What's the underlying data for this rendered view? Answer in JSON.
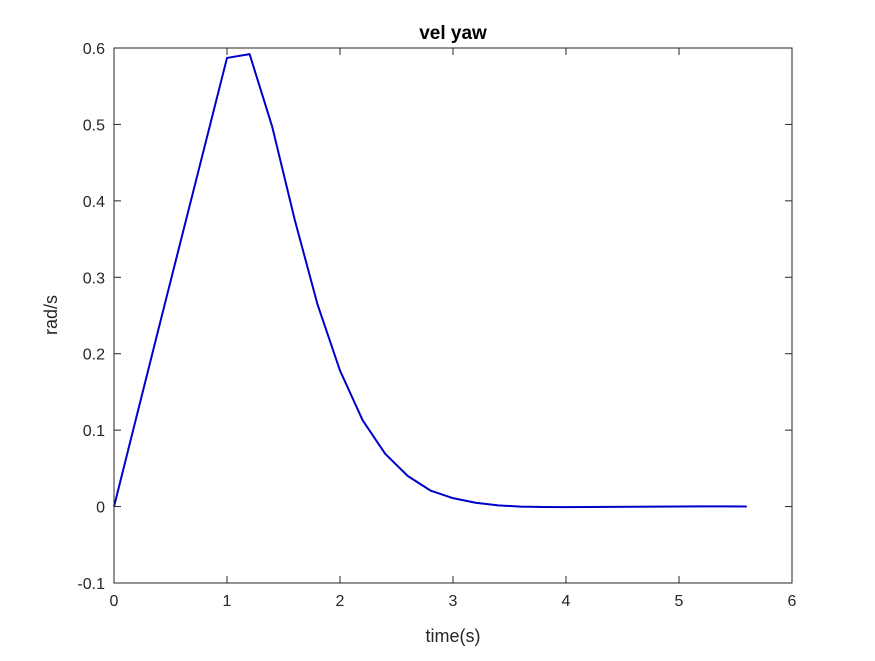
{
  "chart_data": {
    "type": "line",
    "title": "vel yaw",
    "xlabel": "time(s)",
    "ylabel": "rad/s",
    "xlim": [
      0,
      6
    ],
    "ylim": [
      -0.1,
      0.6
    ],
    "xticks": [
      "0",
      "1",
      "2",
      "3",
      "4",
      "5",
      "6"
    ],
    "yticks": [
      "-0.1",
      "0",
      "0.1",
      "0.2",
      "0.3",
      "0.4",
      "0.5",
      "0.6"
    ],
    "grid": false,
    "series": [
      {
        "color": "#0000cc",
        "x": [
          0,
          0.2,
          0.4,
          0.6,
          0.8,
          1.0,
          1.2,
          1.4,
          1.6,
          1.8,
          2.0,
          2.2,
          2.4,
          2.6,
          2.8,
          3.0,
          3.2,
          3.4,
          3.6,
          3.8,
          4.0,
          4.2,
          4.4,
          4.6,
          4.8,
          5.0,
          5.2,
          5.4,
          5.6
        ],
        "y": [
          0,
          0.118,
          0.236,
          0.353,
          0.47,
          0.587,
          0.592,
          0.497,
          0.375,
          0.265,
          0.178,
          0.113,
          0.069,
          0.04,
          0.021,
          0.011,
          0.005,
          0.0015,
          0.0,
          -0.0005,
          -0.0007,
          -0.0006,
          -0.0004,
          -0.0002,
          0.0,
          0.0001,
          0.0002,
          0.0002,
          0.0001
        ]
      }
    ]
  }
}
